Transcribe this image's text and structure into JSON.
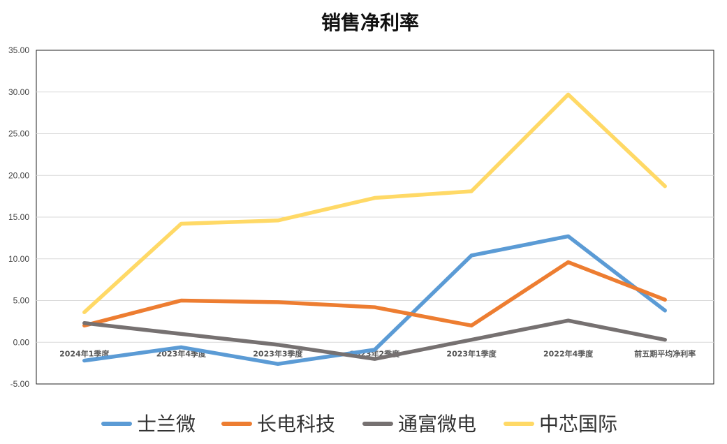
{
  "chart_data": {
    "type": "line",
    "title": "销售净利率",
    "xlabel": "",
    "ylabel": "",
    "ylim": [
      -5,
      35
    ],
    "yticks": [
      "35.00",
      "30.00",
      "25.00",
      "20.00",
      "15.00",
      "10.00",
      "5.00",
      "0.00",
      "-5.00"
    ],
    "ytick_values": [
      35,
      30,
      25,
      20,
      15,
      10,
      5,
      0,
      -5
    ],
    "grid": true,
    "legend_position": "bottom",
    "categories": [
      "2024年1季度",
      "2023年4季度",
      "2023年3季度",
      "2023年2季度",
      "2023年1季度",
      "2022年4季度",
      "前五期平均净利率"
    ],
    "series": [
      {
        "name": "士兰微",
        "color": "#5B9BD5",
        "values": [
          -2.2,
          -0.6,
          -2.6,
          -0.9,
          10.4,
          12.7,
          3.8
        ]
      },
      {
        "name": "长电科技",
        "color": "#ED7D31",
        "values": [
          2.0,
          5.0,
          4.8,
          4.2,
          2.0,
          9.6,
          5.1
        ]
      },
      {
        "name": "通富微电",
        "color": "#767171",
        "values": [
          2.3,
          1.0,
          -0.3,
          -2.0,
          0.3,
          2.6,
          0.3
        ]
      },
      {
        "name": "中芯国际",
        "color": "#FFD966",
        "values": [
          3.6,
          14.2,
          14.6,
          17.3,
          18.1,
          29.7,
          18.7
        ]
      }
    ]
  }
}
